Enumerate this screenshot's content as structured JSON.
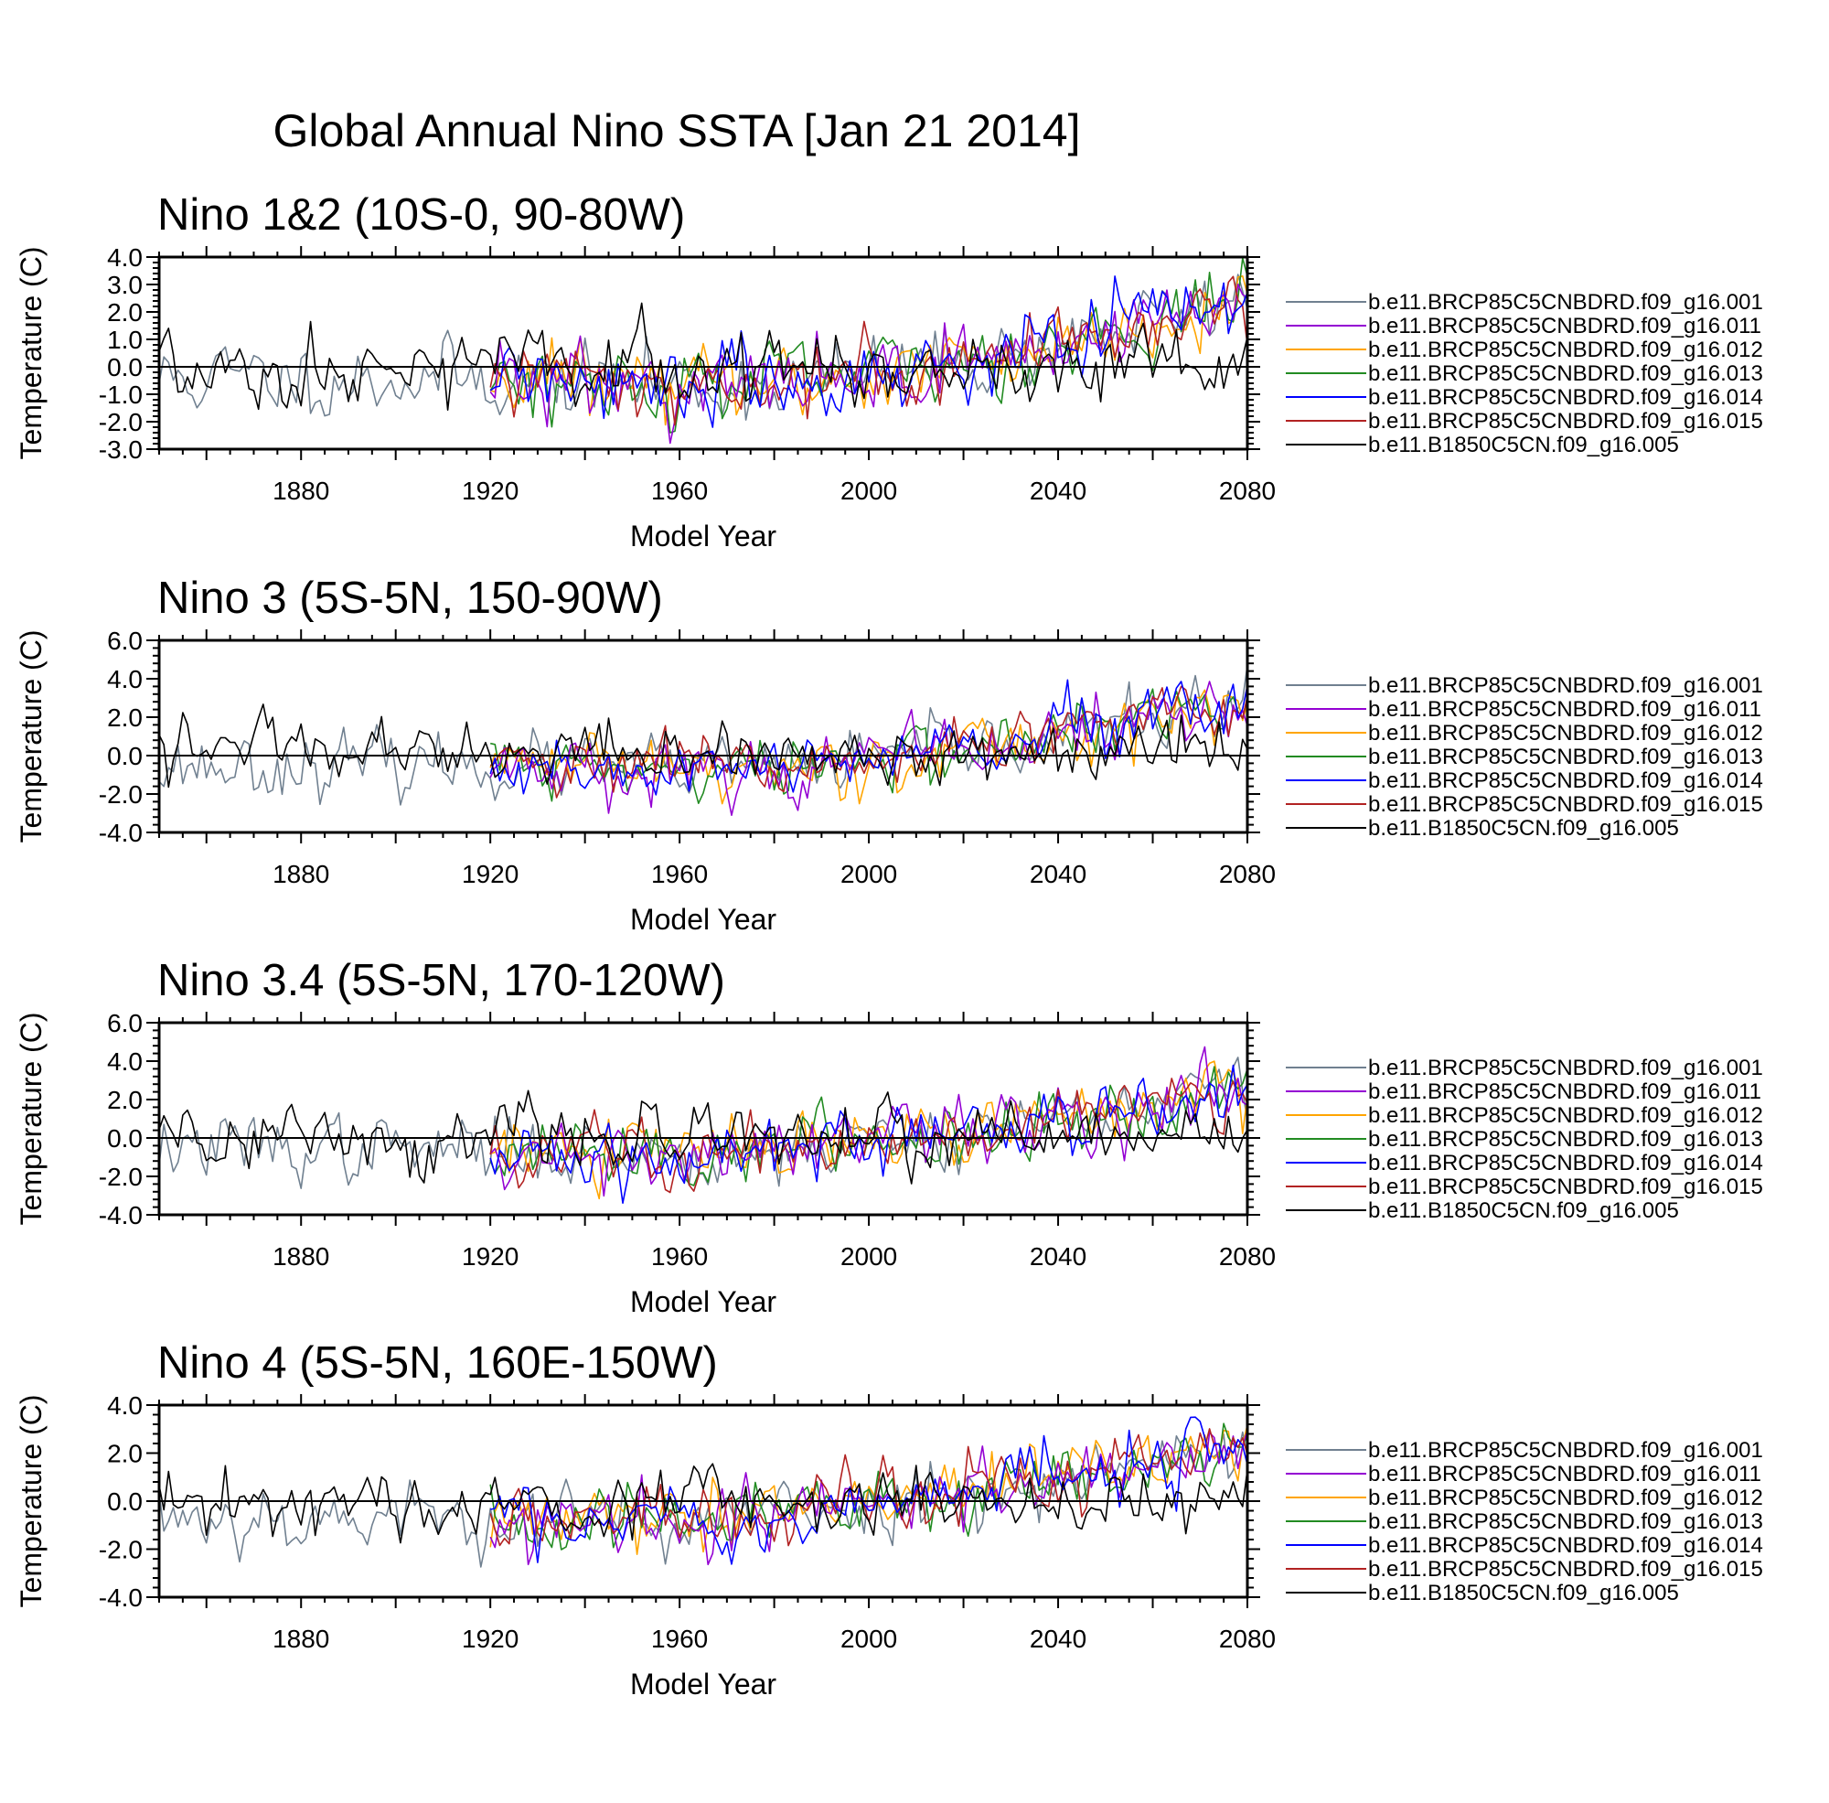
{
  "title": "Global Annual Nino SSTA [Jan 21 2014]",
  "legend": [
    {
      "label": "b.e11.BRCP85C5CNBDRD.f09_g16.001",
      "color": "#708090"
    },
    {
      "label": "b.e11.BRCP85C5CNBDRD.f09_g16.011",
      "color": "#9400d3"
    },
    {
      "label": "b.e11.BRCP85C5CNBDRD.f09_g16.012",
      "color": "#ffa500"
    },
    {
      "label": "b.e11.BRCP85C5CNBDRD.f09_g16.013",
      "color": "#228b22"
    },
    {
      "label": "b.e11.BRCP85C5CNBDRD.f09_g16.014",
      "color": "#0000ff"
    },
    {
      "label": "b.e11.BRCP85C5CNBDRD.f09_g16.015",
      "color": "#b22222"
    },
    {
      "label": "b.e11.B1850C5CN.f09_g16.005",
      "color": "#000000"
    }
  ],
  "chart_data": [
    {
      "type": "line",
      "title": "Nino 1&2 (10S-0, 90-80W)",
      "xlabel": "Model Year",
      "ylabel": "Temperature (C)",
      "xlim": [
        1850,
        2080
      ],
      "ylim": [
        -3.0,
        4.0
      ],
      "xticks": [
        1880,
        1920,
        1960,
        2000,
        2040,
        2080
      ],
      "xtick_labels": [
        "1880",
        "1920",
        "1960",
        "2000",
        "2040",
        "2080"
      ],
      "yticks": [
        -3.0,
        -2.0,
        -1.0,
        0.0,
        1.0,
        2.0,
        3.0,
        4.0
      ],
      "ytick_labels": [
        "-3.0",
        "-2.0",
        "-1.0",
        "0.0",
        "1.0",
        "2.0",
        "3.0",
        "4.0"
      ],
      "series_start": [
        1850,
        1920,
        1920,
        1920,
        1920,
        1920,
        1850
      ],
      "trend": [
        [
          [
            1850,
            -0.4
          ],
          [
            1920,
            -0.4
          ],
          [
            1970,
            -0.7
          ],
          [
            1990,
            -0.5
          ],
          [
            2020,
            0.2
          ],
          [
            2040,
            0.8
          ],
          [
            2080,
            2.6
          ]
        ],
        [
          [
            1850,
            -0.4
          ],
          [
            1920,
            -0.4
          ],
          [
            1970,
            -0.7
          ],
          [
            1990,
            -0.5
          ],
          [
            2020,
            0.2
          ],
          [
            2040,
            0.8
          ],
          [
            2080,
            2.6
          ]
        ],
        [
          [
            1850,
            -0.4
          ],
          [
            1920,
            -0.4
          ],
          [
            1970,
            -0.7
          ],
          [
            1990,
            -0.5
          ],
          [
            2020,
            0.2
          ],
          [
            2040,
            0.8
          ],
          [
            2080,
            2.6
          ]
        ],
        [
          [
            1850,
            -0.4
          ],
          [
            1920,
            -0.4
          ],
          [
            1970,
            -0.7
          ],
          [
            1990,
            -0.5
          ],
          [
            2020,
            0.2
          ],
          [
            2040,
            0.8
          ],
          [
            2080,
            2.6
          ]
        ],
        [
          [
            1850,
            -0.4
          ],
          [
            1920,
            -0.4
          ],
          [
            1970,
            -0.7
          ],
          [
            1990,
            -0.5
          ],
          [
            2020,
            0.2
          ],
          [
            2040,
            0.8
          ],
          [
            2080,
            2.6
          ]
        ],
        [
          [
            1850,
            -0.4
          ],
          [
            1920,
            -0.4
          ],
          [
            1970,
            -0.7
          ],
          [
            1990,
            -0.5
          ],
          [
            2020,
            0.2
          ],
          [
            2040,
            0.8
          ],
          [
            2080,
            2.6
          ]
        ],
        [
          [
            1850,
            0.0
          ],
          [
            2080,
            0.0
          ]
        ]
      ],
      "amplitude": [
        0.75,
        0.75,
        0.75,
        0.75,
        0.75,
        0.75,
        0.7
      ],
      "seed": 11
    },
    {
      "type": "line",
      "title": "Nino 3 (5S-5N, 150-90W)",
      "xlabel": "Model Year",
      "ylabel": "Temperature (C)",
      "xlim": [
        1850,
        2080
      ],
      "ylim": [
        -4.0,
        6.0
      ],
      "xticks": [
        1880,
        1920,
        1960,
        2000,
        2040,
        2080
      ],
      "xtick_labels": [
        "1880",
        "1920",
        "1960",
        "2000",
        "2040",
        "2080"
      ],
      "yticks": [
        -4.0,
        -2.0,
        0.0,
        2.0,
        4.0,
        6.0
      ],
      "ytick_labels": [
        "-4.0",
        "-2.0",
        "0.0",
        "2.0",
        "4.0",
        "6.0"
      ],
      "series_start": [
        1850,
        1920,
        1920,
        1920,
        1920,
        1920,
        1850
      ],
      "trend": [
        [
          [
            1850,
            -0.5
          ],
          [
            1920,
            -0.5
          ],
          [
            1970,
            -0.8
          ],
          [
            1990,
            -0.5
          ],
          [
            2020,
            0.3
          ],
          [
            2040,
            1.0
          ],
          [
            2080,
            2.8
          ]
        ],
        [
          [
            1850,
            -0.5
          ],
          [
            1920,
            -0.5
          ],
          [
            1970,
            -0.8
          ],
          [
            1990,
            -0.5
          ],
          [
            2020,
            0.3
          ],
          [
            2040,
            1.0
          ],
          [
            2080,
            2.8
          ]
        ],
        [
          [
            1850,
            -0.5
          ],
          [
            1920,
            -0.5
          ],
          [
            1970,
            -0.8
          ],
          [
            1990,
            -0.5
          ],
          [
            2020,
            0.3
          ],
          [
            2040,
            1.0
          ],
          [
            2080,
            2.8
          ]
        ],
        [
          [
            1850,
            -0.5
          ],
          [
            1920,
            -0.5
          ],
          [
            1970,
            -0.8
          ],
          [
            1990,
            -0.5
          ],
          [
            2020,
            0.3
          ],
          [
            2040,
            1.0
          ],
          [
            2080,
            2.8
          ]
        ],
        [
          [
            1850,
            -0.5
          ],
          [
            1920,
            -0.5
          ],
          [
            1970,
            -0.8
          ],
          [
            1990,
            -0.5
          ],
          [
            2020,
            0.3
          ],
          [
            2040,
            1.0
          ],
          [
            2080,
            2.8
          ]
        ],
        [
          [
            1850,
            -0.5
          ],
          [
            1920,
            -0.5
          ],
          [
            1970,
            -0.8
          ],
          [
            1990,
            -0.5
          ],
          [
            2020,
            0.3
          ],
          [
            2040,
            1.0
          ],
          [
            2080,
            2.8
          ]
        ],
        [
          [
            1850,
            0.0
          ],
          [
            2080,
            0.0
          ]
        ]
      ],
      "amplitude": [
        0.9,
        0.9,
        0.9,
        0.9,
        0.9,
        0.9,
        0.9
      ],
      "seed": 23
    },
    {
      "type": "line",
      "title": "Nino 3.4 (5S-5N, 170-120W)",
      "xlabel": "Model Year",
      "ylabel": "Temperature (C)",
      "xlim": [
        1850,
        2080
      ],
      "ylim": [
        -4.0,
        6.0
      ],
      "xticks": [
        1880,
        1920,
        1960,
        2000,
        2040,
        2080
      ],
      "xtick_labels": [
        "1880",
        "1920",
        "1960",
        "2000",
        "2040",
        "2080"
      ],
      "yticks": [
        -4.0,
        -2.0,
        0.0,
        2.0,
        4.0,
        6.0
      ],
      "ytick_labels": [
        "-4.0",
        "-2.0",
        "0.0",
        "2.0",
        "4.0",
        "6.0"
      ],
      "series_start": [
        1850,
        1920,
        1920,
        1920,
        1920,
        1920,
        1850
      ],
      "trend": [
        [
          [
            1850,
            -0.5
          ],
          [
            1920,
            -0.6
          ],
          [
            1970,
            -0.8
          ],
          [
            1990,
            -0.4
          ],
          [
            2020,
            0.3
          ],
          [
            2040,
            1.0
          ],
          [
            2080,
            2.7
          ]
        ],
        [
          [
            1850,
            -0.5
          ],
          [
            1920,
            -0.6
          ],
          [
            1970,
            -0.8
          ],
          [
            1990,
            -0.4
          ],
          [
            2020,
            0.3
          ],
          [
            2040,
            1.0
          ],
          [
            2080,
            2.7
          ]
        ],
        [
          [
            1850,
            -0.5
          ],
          [
            1920,
            -0.6
          ],
          [
            1970,
            -0.8
          ],
          [
            1990,
            -0.4
          ],
          [
            2020,
            0.3
          ],
          [
            2040,
            1.0
          ],
          [
            2080,
            2.7
          ]
        ],
        [
          [
            1850,
            -0.5
          ],
          [
            1920,
            -0.6
          ],
          [
            1970,
            -0.8
          ],
          [
            1990,
            -0.4
          ],
          [
            2020,
            0.3
          ],
          [
            2040,
            1.0
          ],
          [
            2080,
            2.7
          ]
        ],
        [
          [
            1850,
            -0.5
          ],
          [
            1920,
            -0.6
          ],
          [
            1970,
            -0.8
          ],
          [
            1990,
            -0.4
          ],
          [
            2020,
            0.3
          ],
          [
            2040,
            1.0
          ],
          [
            2080,
            2.7
          ]
        ],
        [
          [
            1850,
            -0.5
          ],
          [
            1920,
            -0.6
          ],
          [
            1970,
            -0.8
          ],
          [
            1990,
            -0.4
          ],
          [
            2020,
            0.3
          ],
          [
            2040,
            1.0
          ],
          [
            2080,
            2.7
          ]
        ],
        [
          [
            1850,
            0.0
          ],
          [
            2080,
            0.0
          ]
        ]
      ],
      "amplitude": [
        0.95,
        0.95,
        0.95,
        0.95,
        0.95,
        0.95,
        0.95
      ],
      "seed": 37
    },
    {
      "type": "line",
      "title": "Nino 4 (5S-5N, 160E-150W)",
      "xlabel": "Model Year",
      "ylabel": "Temperature (C)",
      "xlim": [
        1850,
        2080
      ],
      "ylim": [
        -4.0,
        4.0
      ],
      "xticks": [
        1880,
        1920,
        1960,
        2000,
        2040,
        2080
      ],
      "xtick_labels": [
        "1880",
        "1920",
        "1960",
        "2000",
        "2040",
        "2080"
      ],
      "yticks": [
        -4.0,
        -2.0,
        0.0,
        2.0,
        4.0
      ],
      "ytick_labels": [
        "-4.0",
        "-2.0",
        "0.0",
        "2.0",
        "4.0"
      ],
      "series_start": [
        1850,
        1920,
        1920,
        1920,
        1920,
        1920,
        1850
      ],
      "trend": [
        [
          [
            1850,
            -0.6
          ],
          [
            1920,
            -0.7
          ],
          [
            1960,
            -0.9
          ],
          [
            1990,
            -0.4
          ],
          [
            2020,
            0.4
          ],
          [
            2040,
            1.0
          ],
          [
            2080,
            2.4
          ]
        ],
        [
          [
            1850,
            -0.6
          ],
          [
            1920,
            -0.7
          ],
          [
            1960,
            -0.9
          ],
          [
            1990,
            -0.4
          ],
          [
            2020,
            0.4
          ],
          [
            2040,
            1.0
          ],
          [
            2080,
            2.4
          ]
        ],
        [
          [
            1850,
            -0.6
          ],
          [
            1920,
            -0.7
          ],
          [
            1960,
            -0.9
          ],
          [
            1990,
            -0.4
          ],
          [
            2020,
            0.4
          ],
          [
            2040,
            1.0
          ],
          [
            2080,
            2.4
          ]
        ],
        [
          [
            1850,
            -0.6
          ],
          [
            1920,
            -0.7
          ],
          [
            1960,
            -0.9
          ],
          [
            1990,
            -0.4
          ],
          [
            2020,
            0.4
          ],
          [
            2040,
            1.0
          ],
          [
            2080,
            2.4
          ]
        ],
        [
          [
            1850,
            -0.6
          ],
          [
            1920,
            -0.7
          ],
          [
            1960,
            -0.9
          ],
          [
            1990,
            -0.4
          ],
          [
            2020,
            0.4
          ],
          [
            2040,
            1.0
          ],
          [
            2080,
            2.4
          ]
        ],
        [
          [
            1850,
            -0.6
          ],
          [
            1920,
            -0.7
          ],
          [
            1960,
            -0.9
          ],
          [
            1990,
            -0.4
          ],
          [
            2020,
            0.4
          ],
          [
            2040,
            1.0
          ],
          [
            2080,
            2.4
          ]
        ],
        [
          [
            1850,
            0.0
          ],
          [
            2080,
            0.0
          ]
        ]
      ],
      "amplitude": [
        0.8,
        0.8,
        0.8,
        0.8,
        0.8,
        0.8,
        0.75
      ],
      "seed": 53
    }
  ]
}
